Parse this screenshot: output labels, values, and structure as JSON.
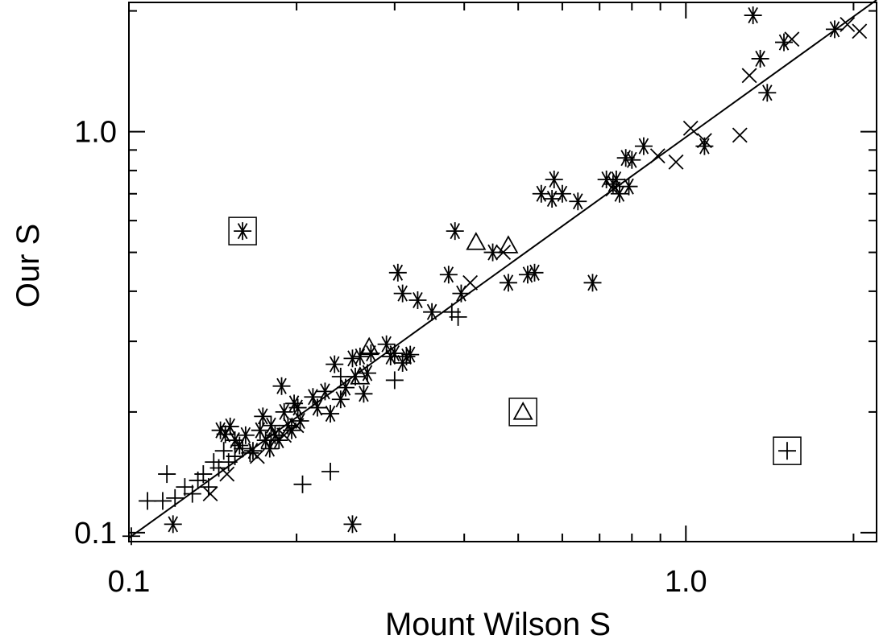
{
  "chart_data": {
    "type": "scatter",
    "title": "",
    "xlabel": "Mount Wilson S",
    "ylabel": "Our S",
    "xscale": "log",
    "yscale": "log",
    "xlim": [
      0.1,
      2.2
    ],
    "ylim": [
      0.095,
      2.1
    ],
    "x_tick_labels": [
      {
        "value": 0.1,
        "label": "0.1"
      },
      {
        "value": 1.0,
        "label": "1.0"
      }
    ],
    "y_tick_labels": [
      {
        "value": 0.1,
        "label": "0.1"
      },
      {
        "value": 1.0,
        "label": "1.0"
      }
    ],
    "grid": false,
    "legend": "none",
    "fit_line": {
      "x": [
        0.1,
        2.2
      ],
      "y": [
        0.097,
        2.13
      ]
    },
    "series": [
      {
        "marker": "asterisk",
        "points": [
          [
            0.146,
            0.18
          ],
          [
            0.149,
            0.176
          ],
          [
            0.152,
            0.184
          ],
          [
            0.155,
            0.17
          ],
          [
            0.158,
            0.165
          ],
          [
            0.162,
            0.175
          ],
          [
            0.167,
            0.16
          ],
          [
            0.172,
            0.18
          ],
          [
            0.176,
            0.17
          ],
          [
            0.18,
            0.185
          ],
          [
            0.183,
            0.175
          ],
          [
            0.186,
            0.17
          ],
          [
            0.19,
            0.2
          ],
          [
            0.193,
            0.185
          ],
          [
            0.196,
            0.18
          ],
          [
            0.198,
            0.21
          ],
          [
            0.201,
            0.205
          ],
          [
            0.203,
            0.19
          ],
          [
            0.174,
            0.195
          ],
          [
            0.179,
            0.162
          ],
          [
            0.188,
            0.232
          ],
          [
            0.214,
            0.218
          ],
          [
            0.218,
            0.205
          ],
          [
            0.225,
            0.225
          ],
          [
            0.23,
            0.198
          ],
          [
            0.234,
            0.263
          ],
          [
            0.24,
            0.215
          ],
          [
            0.245,
            0.23
          ],
          [
            0.252,
            0.272
          ],
          [
            0.255,
            0.245
          ],
          [
            0.26,
            0.275
          ],
          [
            0.264,
            0.222
          ],
          [
            0.268,
            0.25
          ],
          [
            0.272,
            0.28
          ],
          [
            0.29,
            0.295
          ],
          [
            0.295,
            0.275
          ],
          [
            0.3,
            0.28
          ],
          [
            0.31,
            0.265
          ],
          [
            0.315,
            0.275
          ],
          [
            0.32,
            0.278
          ],
          [
            0.304,
            0.445
          ],
          [
            0.31,
            0.395
          ],
          [
            0.33,
            0.38
          ],
          [
            0.35,
            0.355
          ],
          [
            0.375,
            0.44
          ],
          [
            0.385,
            0.565
          ],
          [
            0.395,
            0.395
          ],
          [
            0.45,
            0.5
          ],
          [
            0.48,
            0.42
          ],
          [
            0.52,
            0.44
          ],
          [
            0.535,
            0.445
          ],
          [
            0.55,
            0.7
          ],
          [
            0.575,
            0.68
          ],
          [
            0.58,
            0.76
          ],
          [
            0.6,
            0.7
          ],
          [
            0.64,
            0.67
          ],
          [
            0.68,
            0.42
          ],
          [
            0.72,
            0.76
          ],
          [
            0.74,
            0.74
          ],
          [
            0.75,
            0.76
          ],
          [
            0.76,
            0.7
          ],
          [
            0.78,
            0.86
          ],
          [
            0.79,
            0.73
          ],
          [
            0.8,
            0.85
          ],
          [
            0.84,
            0.92
          ],
          [
            1.08,
            0.92
          ],
          [
            1.36,
            1.52
          ],
          [
            1.4,
            1.25
          ],
          [
            1.5,
            1.67
          ],
          [
            1.32,
            1.95
          ],
          [
            1.85,
            1.8
          ],
          [
            0.12,
            0.105
          ],
          [
            0.252,
            0.105
          ],
          [
            0.16,
            0.565
          ]
        ]
      },
      {
        "marker": "plus",
        "points": [
          [
            0.101,
            0.098
          ],
          [
            0.108,
            0.12
          ],
          [
            0.115,
            0.12
          ],
          [
            0.117,
            0.14
          ],
          [
            0.121,
            0.122
          ],
          [
            0.126,
            0.13
          ],
          [
            0.13,
            0.125
          ],
          [
            0.133,
            0.135
          ],
          [
            0.136,
            0.14
          ],
          [
            0.139,
            0.13
          ],
          [
            0.142,
            0.15
          ],
          [
            0.145,
            0.145
          ],
          [
            0.148,
            0.16
          ],
          [
            0.151,
            0.15
          ],
          [
            0.155,
            0.155
          ],
          [
            0.16,
            0.162
          ],
          [
            0.165,
            0.158
          ],
          [
            0.18,
            0.17
          ],
          [
            0.205,
            0.132
          ],
          [
            0.23,
            0.142
          ],
          [
            0.24,
            0.245
          ],
          [
            0.3,
            0.24
          ],
          [
            0.38,
            0.355
          ],
          [
            0.39,
            0.345
          ],
          [
            1.52,
            0.16
          ]
        ]
      },
      {
        "marker": "x",
        "points": [
          [
            0.14,
            0.125
          ],
          [
            0.15,
            0.14
          ],
          [
            0.17,
            0.155
          ],
          [
            0.19,
            0.175
          ],
          [
            0.2,
            0.185
          ],
          [
            0.41,
            0.42
          ],
          [
            0.47,
            0.5
          ],
          [
            0.74,
            0.72
          ],
          [
            0.89,
            0.87
          ],
          [
            0.96,
            0.84
          ],
          [
            1.02,
            1.02
          ],
          [
            1.08,
            0.95
          ],
          [
            1.25,
            0.98
          ],
          [
            1.3,
            1.38
          ],
          [
            1.55,
            1.7
          ],
          [
            1.95,
            1.85
          ],
          [
            2.05,
            1.78
          ]
        ]
      },
      {
        "marker": "triangle",
        "points": [
          [
            0.26,
            0.245
          ],
          [
            0.27,
            0.29
          ],
          [
            0.42,
            0.53
          ],
          [
            0.48,
            0.52
          ],
          [
            0.51,
            0.2
          ]
        ]
      }
    ],
    "boxed_points": [
      {
        "x": 0.16,
        "y": 0.565,
        "marker": "asterisk"
      },
      {
        "x": 0.51,
        "y": 0.2,
        "marker": "triangle"
      },
      {
        "x": 1.52,
        "y": 0.16,
        "marker": "plus"
      }
    ]
  }
}
